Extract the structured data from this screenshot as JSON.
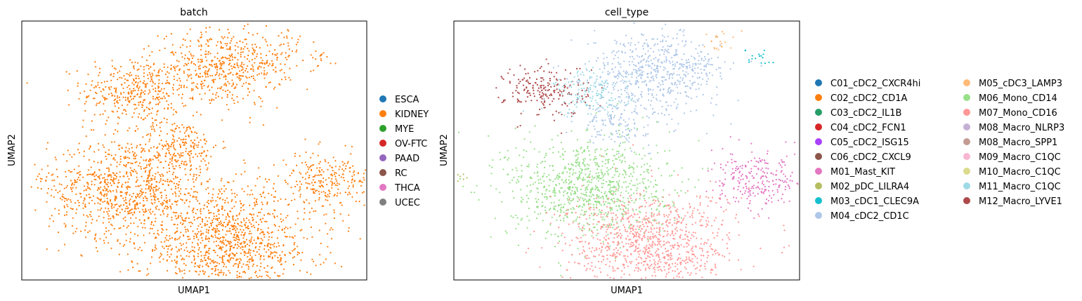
{
  "chart_data": [
    {
      "type": "scatter",
      "title": "batch",
      "xlabel": "UMAP1",
      "ylabel": "UMAP2",
      "grid": false,
      "ticks": false,
      "legend_position": "right",
      "legend": [
        {
          "label": "ESCA",
          "color": "#1f77b4"
        },
        {
          "label": "KIDNEY",
          "color": "#ff7f0e"
        },
        {
          "label": "MYE",
          "color": "#2ca02c"
        },
        {
          "label": "OV-FTC",
          "color": "#d62728"
        },
        {
          "label": "PAAD",
          "color": "#9467bd"
        },
        {
          "label": "RC",
          "color": "#8c564b"
        },
        {
          "label": "THCA",
          "color": "#e377c2"
        },
        {
          "label": "UCEC",
          "color": "#7f7f7f"
        }
      ],
      "points": {
        "dominant_category": "KIDNEY",
        "approx_clusters": [
          {
            "category": "KIDNEY",
            "x": 0.33,
            "y": 0.73,
            "weight": 0.09
          },
          {
            "category": "KIDNEY",
            "x": 0.58,
            "y": 0.82,
            "weight": 0.12
          },
          {
            "category": "KIDNEY",
            "x": 0.45,
            "y": 0.52,
            "weight": 0.05
          },
          {
            "category": "KIDNEY",
            "x": 0.31,
            "y": 0.35,
            "weight": 0.22
          },
          {
            "category": "KIDNEY",
            "x": 0.6,
            "y": 0.14,
            "weight": 0.26
          },
          {
            "category": "KIDNEY",
            "x": 0.88,
            "y": 0.38,
            "weight": 0.06
          },
          {
            "category": "KIDNEY",
            "x": 0.72,
            "y": 0.83,
            "weight": 0.01
          },
          {
            "category": "KIDNEY",
            "x": 0.77,
            "y": 0.92,
            "weight": 0.005
          },
          {
            "category": "KIDNEY",
            "x": 0.86,
            "y": 0.86,
            "weight": 0.004
          },
          {
            "category": "KIDNEY",
            "x": 0.04,
            "y": 0.4,
            "weight": 0.001
          }
        ]
      }
    },
    {
      "type": "scatter",
      "title": "cell_type",
      "xlabel": "UMAP1",
      "ylabel": "UMAP2",
      "grid": false,
      "ticks": false,
      "legend_position": "right",
      "legend": [
        {
          "label": "C01_cDC2_CXCR4hi",
          "color": "#1f77b4"
        },
        {
          "label": "C02_cDC2_CD1A",
          "color": "#ff7f0e"
        },
        {
          "label": "C03_cDC2_IL1B",
          "color": "#279e68"
        },
        {
          "label": "C04_cDC2_FCN1",
          "color": "#d62728"
        },
        {
          "label": "C05_cDC2_ISG15",
          "color": "#aa40fc"
        },
        {
          "label": "C06_cDC2_CXCL9",
          "color": "#8c564b"
        },
        {
          "label": "M01_Mast_KIT",
          "color": "#e377c2"
        },
        {
          "label": "M02_pDC_LILRA4",
          "color": "#b5bd61"
        },
        {
          "label": "M03_cDC1_CLEC9A",
          "color": "#17becf"
        },
        {
          "label": "M04_cDC2_CD1C",
          "color": "#aec7e8"
        },
        {
          "label": "M05_cDC3_LAMP3",
          "color": "#ffbb78"
        },
        {
          "label": "M06_Mono_CD14",
          "color": "#98df8a"
        },
        {
          "label": "M07_Mono_CD16",
          "color": "#ff9896"
        },
        {
          "label": "M08_Macro_NLRP3",
          "color": "#c5b0d5"
        },
        {
          "label": "M08_Macro_SPP1",
          "color": "#c49c94"
        },
        {
          "label": "M09_Macro_C1QC",
          "color": "#f7b6d2"
        },
        {
          "label": "M10_Macro_C1QC",
          "color": "#dbdb8d"
        },
        {
          "label": "M11_Macro_C1QC",
          "color": "#9edae5"
        },
        {
          "label": "M12_Macro_LYVE1",
          "color": "#ad494a"
        }
      ],
      "points": {
        "approx_clusters": [
          {
            "category": "M12_Macro_LYVE1",
            "x": 0.27,
            "y": 0.73,
            "weight": 0.05
          },
          {
            "category": "M11_Macro_C1QC",
            "x": 0.4,
            "y": 0.72,
            "weight": 0.04
          },
          {
            "category": "M04_cDC2_CD1C",
            "x": 0.58,
            "y": 0.8,
            "weight": 0.14
          },
          {
            "category": "M04_cDC2_CD1C",
            "x": 0.47,
            "y": 0.6,
            "weight": 0.03
          },
          {
            "category": "M06_Mono_CD14",
            "x": 0.39,
            "y": 0.36,
            "weight": 0.22
          },
          {
            "category": "M07_Mono_CD16",
            "x": 0.57,
            "y": 0.14,
            "weight": 0.24
          },
          {
            "category": "M01_Mast_KIT",
            "x": 0.88,
            "y": 0.38,
            "weight": 0.06
          },
          {
            "category": "M05_cDC3_LAMP3",
            "x": 0.76,
            "y": 0.92,
            "weight": 0.005
          },
          {
            "category": "M04_cDC2_CD1C",
            "x": 0.71,
            "y": 0.82,
            "weight": 0.008
          },
          {
            "category": "M03_cDC1_CLEC9A",
            "x": 0.88,
            "y": 0.86,
            "weight": 0.004
          },
          {
            "category": "M02_pDC_LILRA4",
            "x": 0.04,
            "y": 0.4,
            "weight": 0.001
          }
        ]
      }
    }
  ]
}
